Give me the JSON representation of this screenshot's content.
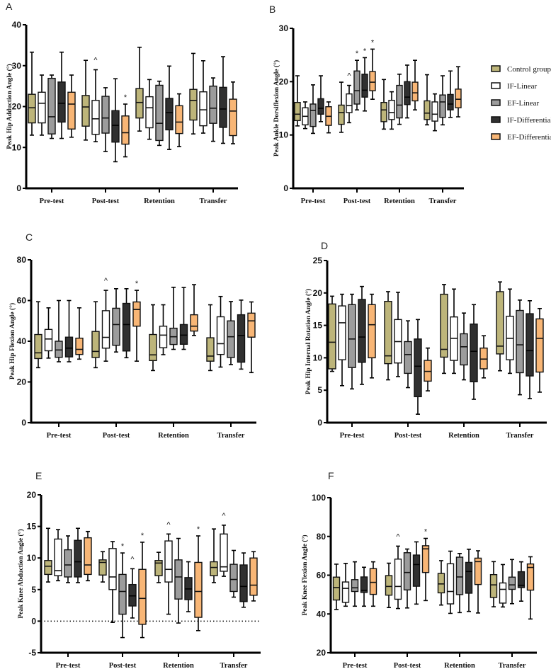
{
  "chart_data": {
    "type": "box",
    "legend": {
      "placement": "right of panel B",
      "entries": [
        "Control group",
        "IF-Linear",
        "EF-Linear",
        "IF-Differential",
        "EF-Differential"
      ]
    },
    "series_colors": [
      "#bdb57a",
      "#ffffff",
      "#9c9c9c",
      "#303030",
      "#f8b676"
    ],
    "categories": [
      "Pre-test",
      "Post-test",
      "Retention",
      "Transfer"
    ],
    "value_format": "[min, q1, median, q3, max]",
    "panels": [
      {
        "letter": "A",
        "ylabel": "Peak Hip Adduction Angle (°)",
        "ylim": [
          0,
          40
        ],
        "yticks": [
          "0",
          "10",
          "20",
          "30",
          "40"
        ],
        "boxes": [
          [
            [
              13,
              16,
              19.7,
              23,
              33.3
            ],
            [
              13,
              16,
              20.8,
              23.5,
              27.7
            ],
            [
              12.2,
              13.3,
              17.5,
              26.9,
              27.7
            ],
            [
              12.2,
              16.2,
              20.8,
              26,
              33.3
            ],
            [
              12.5,
              14.5,
              20.6,
              23.5,
              27.7
            ]
          ],
          [
            [
              11.8,
              15.2,
              19.9,
              22.7,
              31.3
            ],
            [
              11.4,
              13.2,
              17,
              21.5,
              29
            ],
            [
              9,
              13.5,
              17.2,
              22.5,
              24.6
            ],
            [
              6.5,
              11.3,
              15.4,
              19,
              26.8
            ],
            [
              7.7,
              10.8,
              13.6,
              17.7,
              20.6
            ]
          ],
          [
            [
              14,
              17.2,
              21,
              24.4,
              34.5
            ],
            [
              12,
              14.8,
              19.7,
              22.4,
              26.6
            ],
            [
              10.5,
              11.7,
              15.9,
              25.2,
              26.2
            ],
            [
              9.5,
              14.3,
              18.5,
              22,
              29.9
            ],
            [
              10.2,
              13.4,
              16.2,
              20.2,
              23.1
            ]
          ],
          [
            [
              13.3,
              16.7,
              21.5,
              24.2,
              33
            ],
            [
              13.5,
              15.3,
              19.2,
              23.6,
              31.2
            ],
            [
              11.5,
              15.9,
              19.6,
              25,
              27
            ],
            [
              11,
              14.9,
              19.4,
              24.7,
              32.2
            ],
            [
              10.9,
              12.9,
              18.9,
              21.8,
              26
            ]
          ]
        ],
        "annotations": [
          {
            "category": 1,
            "series": 1,
            "symbol": "^"
          },
          {
            "category": 1,
            "series": 4,
            "symbol": "*"
          }
        ]
      },
      {
        "letter": "B",
        "ylabel": "Peak Ankle Dorsiflexion Angle (°)",
        "ylim": [
          0,
          30
        ],
        "yticks": [
          "0",
          "10",
          "20",
          "30"
        ],
        "boxes": [
          [
            [
              11.7,
              12.7,
              13.9,
              16.1,
              21.1
            ],
            [
              11.2,
              11.9,
              13.5,
              15.1,
              16.2
            ],
            [
              10.3,
              11.6,
              14.6,
              15.8,
              19.4
            ],
            [
              12.5,
              13.9,
              15,
              16.8,
              21.1
            ],
            [
              10.4,
              11.8,
              13.5,
              15.3,
              16.2
            ]
          ],
          [
            [
              10.5,
              12,
              14.2,
              15.6,
              19.9
            ],
            [
              12.3,
              14.2,
              15.5,
              17.7,
              19.3
            ],
            [
              14.7,
              15.8,
              18.3,
              22,
              24
            ],
            [
              14.5,
              17.1,
              18.4,
              21.4,
              24.5
            ],
            [
              16.7,
              18.3,
              19.9,
              21.9,
              26.1
            ]
          ],
          [
            [
              11.1,
              12.5,
              14.7,
              16.1,
              20.4
            ],
            [
              11.1,
              12.9,
              14.2,
              16.5,
              18.1
            ],
            [
              12,
              13.2,
              15.6,
              19.3,
              21.4
            ],
            [
              13.2,
              15.7,
              17.1,
              20,
              23.1
            ],
            [
              14.7,
              16.4,
              17.9,
              19.9,
              24
            ]
          ],
          [
            [
              11.9,
              12.9,
              14.1,
              16.4,
              21.3
            ],
            [
              10.8,
              12.6,
              13.9,
              16.2,
              17.7
            ],
            [
              11.9,
              13.3,
              16.2,
              17.5,
              21.1
            ],
            [
              13.3,
              14.7,
              15.8,
              17.6,
              22
            ],
            [
              13.4,
              15.1,
              16.7,
              18.6,
              22.8
            ]
          ]
        ],
        "annotations": [
          {
            "category": 1,
            "series": 1,
            "symbol": "^"
          },
          {
            "category": 1,
            "series": 2,
            "symbol": "*"
          },
          {
            "category": 1,
            "series": 3,
            "symbol": "*"
          },
          {
            "category": 1,
            "series": 4,
            "symbol": "*"
          }
        ]
      },
      {
        "letter": "C",
        "ylabel": "Peak Hip Flexion  Angle (°)",
        "ylim": [
          0,
          80
        ],
        "yticks": [
          "0",
          "20",
          "40",
          "60",
          "80"
        ],
        "boxes": [
          [
            [
              27,
              31.5,
              34.3,
              43.3,
              59.4
            ],
            [
              31.7,
              35.3,
              41.1,
              45.8,
              56.4
            ],
            [
              29.9,
              32.1,
              35.7,
              40,
              60
            ],
            [
              29.9,
              32.3,
              36.6,
              42,
              60
            ],
            [
              31.2,
              33.5,
              36,
              41.5,
              56.4
            ]
          ],
          [
            [
              27,
              32,
              35,
              44.8,
              59.4
            ],
            [
              30.2,
              36.6,
              41.9,
              55,
              65
            ],
            [
              34.7,
              38,
              48.2,
              56.2,
              65.8
            ],
            [
              31.9,
              35.2,
              48.2,
              58.6,
              65.8
            ],
            [
              30.2,
              47.4,
              55.6,
              59.3,
              65
            ]
          ],
          [
            [
              25.6,
              30.5,
              33.3,
              43.3,
              57.9
            ],
            [
              33.4,
              36.8,
              43,
              47.4,
              57.9
            ],
            [
              36,
              38.4,
              42.2,
              46.4,
              66.5
            ],
            [
              36,
              38.5,
              43,
              48.2,
              66.4
            ],
            [
              42.8,
              45,
              47.4,
              53,
              67.8
            ]
          ],
          [
            [
              25.6,
              30.2,
              32.7,
              41.7,
              57.9
            ],
            [
              27.3,
              33.5,
              38.8,
              52,
              62
            ],
            [
              28.5,
              32,
              42.2,
              50,
              59.5
            ],
            [
              26.3,
              29.7,
              42.8,
              53,
              60.2
            ],
            [
              24.6,
              42,
              50,
              53.8,
              59.3
            ]
          ]
        ],
        "annotations": [
          {
            "category": 1,
            "series": 1,
            "symbol": "^"
          },
          {
            "category": 1,
            "series": 4,
            "symbol": "*"
          }
        ]
      },
      {
        "letter": "D",
        "ylabel": "Peak Hip Internal Rotation  Angle (°)",
        "ylim": [
          0,
          25
        ],
        "yticks": [
          "0",
          "5",
          "10",
          "15",
          "20",
          "25"
        ],
        "boxes": [
          [
            [
              7.9,
              8.3,
              12.4,
              18.3,
              19.5
            ],
            [
              5.7,
              9.7,
              15.4,
              18,
              19.8
            ],
            [
              5.2,
              8.5,
              12.9,
              18.2,
              19.8
            ],
            [
              5.9,
              9.3,
              13.2,
              19,
              21
            ],
            [
              6.9,
              10,
              15.1,
              18.2,
              19.8
            ]
          ],
          [
            [
              6.6,
              9.1,
              10.3,
              18.7,
              20.2
            ],
            [
              7.1,
              9.2,
              12.5,
              15.9,
              20.1
            ],
            [
              5.4,
              7.6,
              10.5,
              12.5,
              15.7
            ],
            [
              1.3,
              4,
              8.7,
              12.9,
              15.9
            ],
            [
              4.9,
              6.4,
              7.9,
              9.6,
              11.5
            ]
          ],
          [
            [
              7.6,
              10.1,
              11.3,
              19.8,
              21.3
            ],
            [
              7.6,
              9.6,
              13,
              16.3,
              20.6
            ],
            [
              6.6,
              8.9,
              11.7,
              13.7,
              16.9
            ],
            [
              3.6,
              6.3,
              11,
              15.2,
              18.2
            ],
            [
              6.9,
              8.3,
              9.8,
              11.5,
              13.4
            ]
          ],
          [
            [
              8,
              10.6,
              11.8,
              20.2,
              21.7
            ],
            [
              7.6,
              9.7,
              13,
              16.4,
              20.6
            ],
            [
              4.3,
              7.7,
              12,
              17.3,
              18.9
            ],
            [
              3.7,
              7.2,
              11.1,
              16.8,
              18.8
            ],
            [
              4.7,
              7.8,
              13,
              16,
              17.6
            ]
          ]
        ],
        "annotations": []
      },
      {
        "letter": "E",
        "ylabel": "Peak Knee Abduction Angle (°)",
        "ylim": [
          -5,
          20
        ],
        "yticks": [
          "-5",
          "0",
          "5",
          "10",
          "15",
          "20"
        ],
        "reference_line": 0,
        "boxes": [
          [
            [
              6.2,
              7.4,
              8.7,
              9.6,
              14.7
            ],
            [
              6.4,
              7.2,
              8,
              13,
              14.5
            ],
            [
              6.1,
              7,
              8.9,
              11.3,
              13.5
            ],
            [
              6.1,
              7,
              9.4,
              12.8,
              14.7
            ],
            [
              6.4,
              7.4,
              8.9,
              13.2,
              14.2
            ]
          ],
          [
            [
              6.2,
              7.3,
              9.3,
              9.7,
              11
            ],
            [
              -0.2,
              5,
              7,
              11.5,
              12.6
            ],
            [
              -2.6,
              1.1,
              4.7,
              7.4,
              10.8
            ],
            [
              0.5,
              2.4,
              4,
              5.8,
              8.3
            ],
            [
              -2.6,
              -0.5,
              3.6,
              8.2,
              12.5
            ]
          ],
          [
            [
              6.1,
              7.2,
              9.2,
              9.6,
              10.9
            ],
            [
              1.1,
              6.2,
              8.2,
              12.7,
              13.8
            ],
            [
              -0.3,
              3.5,
              7,
              9.7,
              13.1
            ],
            [
              1.5,
              3.4,
              5.1,
              6.9,
              9.4
            ],
            [
              -1.5,
              0.6,
              4.7,
              9.3,
              13.5
            ]
          ],
          [
            [
              6.1,
              7.2,
              8.5,
              9.4,
              14.6
            ],
            [
              7.1,
              7.9,
              8.6,
              13.8,
              15.2
            ],
            [
              3.8,
              4.7,
              6.6,
              9,
              11.2
            ],
            [
              2.2,
              3.1,
              5.5,
              8.9,
              10.8
            ],
            [
              3.2,
              4.1,
              5.7,
              10,
              11
            ]
          ]
        ],
        "annotations": [
          {
            "category": 1,
            "series": 2,
            "symbol": "*"
          },
          {
            "category": 1,
            "series": 3,
            "symbol": "^"
          },
          {
            "category": 1,
            "series": 4,
            "symbol": "*"
          },
          {
            "category": 2,
            "series": 1,
            "symbol": "^"
          },
          {
            "category": 2,
            "series": 4,
            "symbol": "*"
          },
          {
            "category": 3,
            "series": 1,
            "symbol": "^"
          }
        ]
      },
      {
        "letter": "F",
        "ylabel": "Peak Knee Flexion Angle (°)",
        "ylim": [
          20,
          100
        ],
        "yticks": [
          "20",
          "40",
          "60",
          "80",
          "100"
        ],
        "boxes": [
          [
            [
              42.3,
              47.2,
              53.6,
              59,
              65.7
            ],
            [
              44,
              46,
              53.2,
              56.5,
              66.1
            ],
            [
              44,
              51.6,
              53.5,
              57.7,
              66.9
            ],
            [
              44,
              51.1,
              52.2,
              59.1,
              64.1
            ],
            [
              44,
              50.1,
              56.3,
              63.4,
              66.9
            ]
          ],
          [
            [
              43.3,
              49.7,
              54.2,
              59.8,
              66.2
            ],
            [
              42.8,
              47.6,
              54.2,
              68.3,
              75
            ],
            [
              43.1,
              52.4,
              61.4,
              71.6,
              73.5
            ],
            [
              45.1,
              54.3,
              65.5,
              70.4,
              77.2
            ],
            [
              46.9,
              61.4,
              73.6,
              75.2,
              79
            ]
          ],
          [
            [
              44.6,
              50.9,
              55.5,
              60.9,
              67.5
            ],
            [
              40.3,
              45.2,
              51.6,
              65.9,
              72.4
            ],
            [
              40.7,
              50,
              59.1,
              69.3,
              71.2
            ],
            [
              41.3,
              50.7,
              61.9,
              66.6,
              73.4
            ],
            [
              40.5,
              55.2,
              67,
              68.8,
              72.6
            ]
          ],
          [
            [
              43.7,
              48.5,
              55,
              60.3,
              67
            ],
            [
              43.6,
              45.6,
              52.7,
              56,
              65.5
            ],
            [
              45.3,
              52.7,
              55,
              59,
              68.1
            ],
            [
              46.6,
              53.6,
              54.8,
              61.8,
              66.9
            ],
            [
              37.4,
              52.3,
              64,
              65.8,
              69.5
            ]
          ]
        ],
        "annotations": [
          {
            "category": 1,
            "series": 1,
            "symbol": "^"
          },
          {
            "category": 1,
            "series": 4,
            "symbol": "*"
          }
        ]
      }
    ]
  }
}
